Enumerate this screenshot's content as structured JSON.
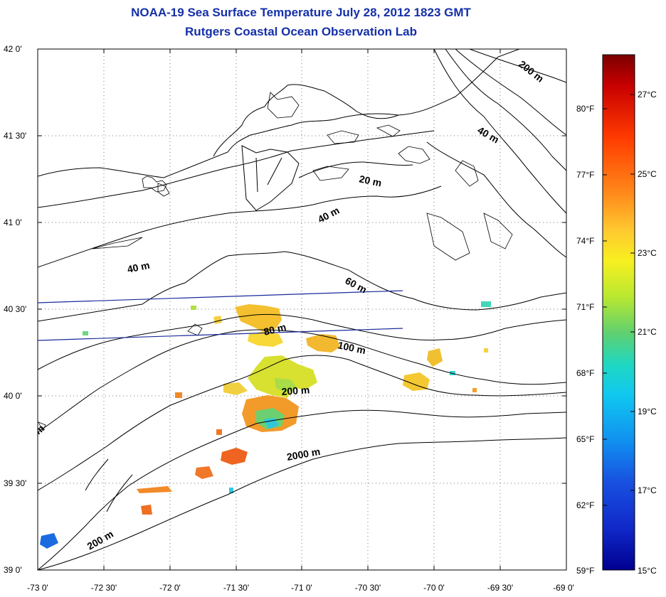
{
  "title": {
    "line1": "NOAA-19 Sea Surface Temperature July 28, 2012 1823 GMT",
    "line2": "Rutgers Coastal Ocean Observation Lab"
  },
  "map": {
    "lat_labels": [
      "42 0'",
      "41 30'",
      "41 0'",
      "40 30'",
      "40 0'",
      "39 30'",
      "39 0'"
    ],
    "lon_labels": [
      "-73 0'",
      "-72 30'",
      "-72 0'",
      "-71 30'",
      "-71 0'",
      "-70 30'",
      "-70 0'",
      "-69 30'",
      "-69 0'"
    ],
    "contour_labels": [
      "200 m",
      "40 m",
      "20 m",
      "40 m",
      "40 m",
      "60 m",
      "80 m",
      "100 m",
      "200 m",
      "2000 m",
      "200 m",
      "m"
    ]
  },
  "colorbar": {
    "celsius_labels": [
      "27°C",
      "25°C",
      "23°C",
      "21°C",
      "19°C",
      "17°C",
      "15°C"
    ],
    "fahrenheit_labels": [
      "80°F",
      "77°F",
      "74°F",
      "71°F",
      "68°F",
      "65°F",
      "62°F",
      "59°F"
    ],
    "colors": [
      "#7a0000",
      "#c80000",
      "#ff3a00",
      "#ff8a1a",
      "#ffc830",
      "#f8f020",
      "#b8e830",
      "#60d070",
      "#20d8c0",
      "#10c8f0",
      "#1090f0",
      "#1850e0",
      "#1028c8",
      "#000090"
    ]
  },
  "accent_colors": {
    "title": "#1530a8",
    "transect": "#1a2a9a"
  }
}
